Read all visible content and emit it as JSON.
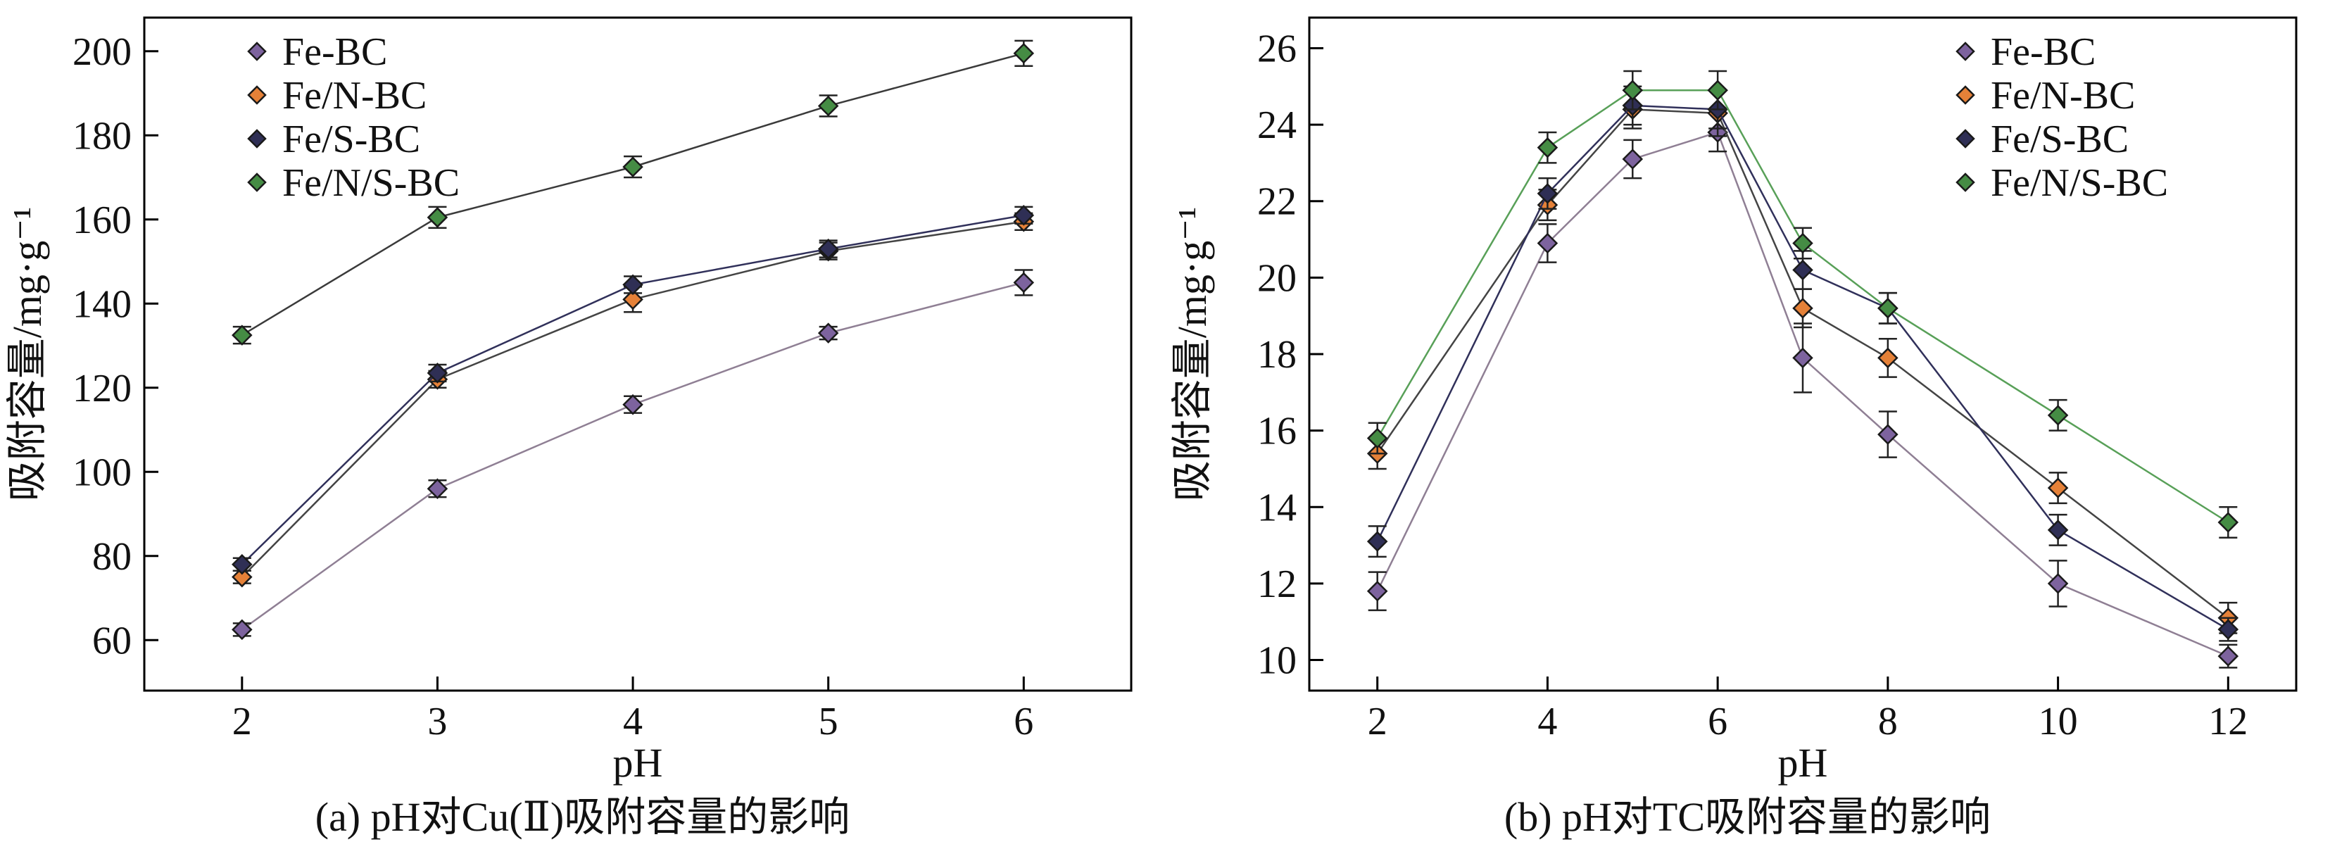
{
  "figure": {
    "background": "#ffffff",
    "axis_color": "#000000",
    "error_bar_color": "#222222",
    "marker_outline": "#1a1a1a"
  },
  "chart_data": [
    {
      "id": "a",
      "type": "line",
      "caption": "(a) pH对Cu(Ⅱ)吸附容量的影响",
      "xlabel": "pH",
      "ylabel": "吸附容量/mg·g⁻¹",
      "x": [
        2,
        3,
        4,
        5,
        6
      ],
      "xticks": [
        2,
        3,
        4,
        5,
        6
      ],
      "yticks": [
        60,
        80,
        100,
        120,
        140,
        160,
        180,
        200
      ],
      "xlim": [
        1.5,
        6.55
      ],
      "ylim": [
        48,
        208
      ],
      "grid": false,
      "legend_position": "top-left",
      "series": [
        {
          "name": "Fe-BC",
          "marker_color": "#7d639e",
          "line_color": "#8f7f94",
          "values": [
            62.5,
            96,
            116,
            133,
            145
          ],
          "errors": [
            1.5,
            2,
            2,
            1.5,
            3
          ]
        },
        {
          "name": "Fe/N-BC",
          "marker_color": "#e58138",
          "line_color": "#444444",
          "values": [
            75,
            122,
            141,
            152.5,
            159.5
          ],
          "errors": [
            1.5,
            2,
            3,
            2,
            2
          ]
        },
        {
          "name": "Fe/S-BC",
          "marker_color": "#2f2f55",
          "line_color": "#30305a",
          "values": [
            78,
            123.5,
            144.5,
            153,
            161
          ],
          "errors": [
            1.5,
            2,
            2,
            2,
            2
          ]
        },
        {
          "name": "Fe/N/S-BC",
          "marker_color": "#458c44",
          "line_color": "#3a3a3a",
          "values": [
            132.5,
            160.5,
            172.5,
            187,
            199.5
          ],
          "errors": [
            2,
            2.5,
            2.5,
            2.5,
            3
          ]
        }
      ]
    },
    {
      "id": "b",
      "type": "line",
      "caption": "(b) pH对TC吸附容量的影响",
      "xlabel": "pH",
      "ylabel": "吸附容量/mg·g⁻¹",
      "x": [
        2,
        4,
        5,
        6,
        7,
        8,
        10,
        12
      ],
      "xticks": [
        2,
        4,
        6,
        8,
        10,
        12
      ],
      "yticks": [
        10,
        12,
        14,
        16,
        18,
        20,
        22,
        24,
        26
      ],
      "xlim": [
        1.2,
        12.8
      ],
      "ylim": [
        9.2,
        26.8
      ],
      "grid": false,
      "legend_position": "top-right",
      "series": [
        {
          "name": "Fe-BC",
          "marker_color": "#7d639e",
          "line_color": "#8f7f94",
          "values": [
            11.8,
            20.9,
            23.1,
            23.8,
            17.9,
            15.9,
            12.0,
            10.1
          ],
          "errors": [
            0.5,
            0.5,
            0.5,
            0.5,
            0.9,
            0.6,
            0.6,
            0.3
          ]
        },
        {
          "name": "Fe/N-BC",
          "marker_color": "#e58138",
          "line_color": "#444444",
          "values": [
            15.4,
            21.9,
            24.4,
            24.3,
            19.2,
            17.9,
            14.5,
            11.1
          ],
          "errors": [
            0.4,
            0.4,
            0.5,
            0.6,
            0.5,
            0.5,
            0.4,
            0.4
          ]
        },
        {
          "name": "Fe/S-BC",
          "marker_color": "#2f2f55",
          "line_color": "#30305a",
          "values": [
            13.1,
            22.2,
            24.5,
            24.4,
            20.2,
            19.2,
            13.4,
            10.8
          ],
          "errors": [
            0.4,
            0.4,
            0.5,
            0.5,
            0.5,
            0.4,
            0.4,
            0.3
          ]
        },
        {
          "name": "Fe/N/S-BC",
          "marker_color": "#458c44",
          "line_color": "#58a058",
          "values": [
            15.8,
            23.4,
            24.9,
            24.9,
            20.9,
            19.2,
            16.4,
            13.6
          ],
          "errors": [
            0.4,
            0.4,
            0.5,
            0.5,
            0.4,
            0.4,
            0.4,
            0.4
          ]
        }
      ]
    }
  ]
}
